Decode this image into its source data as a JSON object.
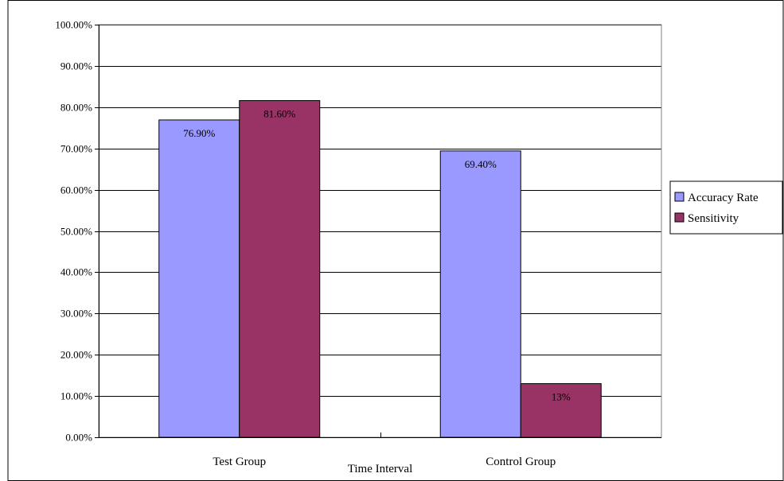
{
  "chart_data": {
    "type": "bar",
    "xlabel": "Time Interval",
    "ylabel": "",
    "ylim": [
      0,
      1
    ],
    "ytick_step": 0.1,
    "ytick_labels": [
      "0.00%",
      "10.00%",
      "20.00%",
      "30.00%",
      "40.00%",
      "50.00%",
      "60.00%",
      "70.00%",
      "80.00%",
      "90.00%",
      "100.00%"
    ],
    "categories": [
      "Test Group",
      "Control Group"
    ],
    "series": [
      {
        "name": "Accuracy Rate",
        "color": "#9999ff",
        "values": [
          0.769,
          0.694
        ],
        "labels": [
          "76.90%",
          "69.40%"
        ]
      },
      {
        "name": "Sensitivity",
        "color": "#993366",
        "values": [
          0.816,
          0.13
        ],
        "labels": [
          "81.60%",
          "13%"
        ]
      }
    ],
    "grid": true,
    "legend_position": "right"
  }
}
